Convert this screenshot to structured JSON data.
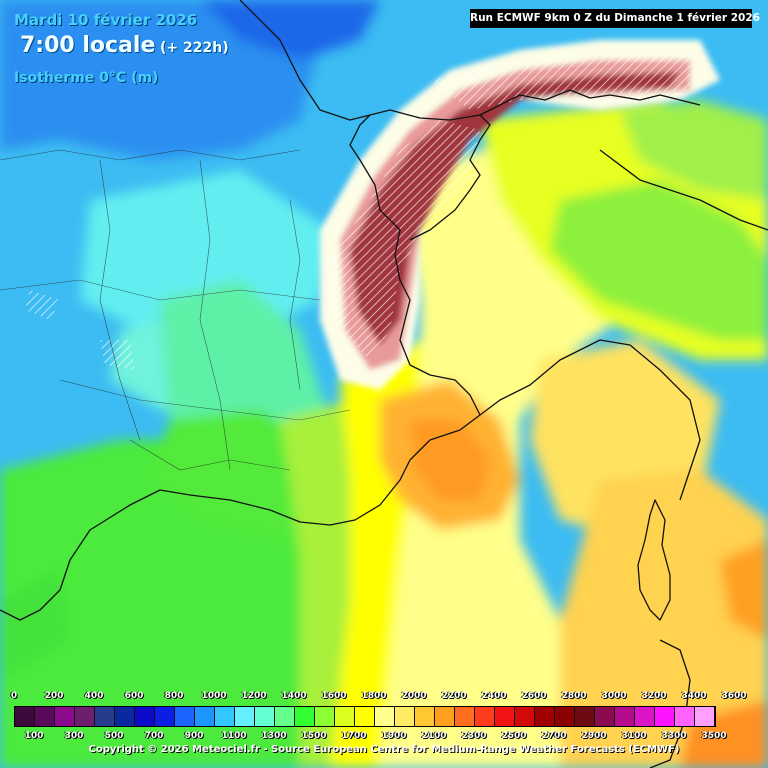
{
  "header": {
    "date": "Mardi 10 février 2026",
    "time": "7:00 locale",
    "lead": "(+ 222h)",
    "parameter": "Isotherme 0°C (m)",
    "run": "Run ECMWF 9km 0 Z du Dimanche 1 février 2026"
  },
  "legend": {
    "top_labels": [
      "0",
      "200",
      "400",
      "600",
      "800",
      "1000",
      "1200",
      "1400",
      "1600",
      "1800",
      "2000",
      "2200",
      "2400",
      "2600",
      "2800",
      "3000",
      "3200",
      "3400",
      "3600"
    ],
    "bottom_labels": [
      "100",
      "300",
      "500",
      "700",
      "900",
      "1100",
      "1300",
      "1500",
      "1700",
      "1900",
      "2100",
      "2300",
      "2500",
      "2700",
      "2900",
      "3100",
      "3300",
      "3500"
    ],
    "colors": [
      "#3c0a3c",
      "#5a0a5a",
      "#8c0a8c",
      "#6e1e6e",
      "#283c8c",
      "#0a28a0",
      "#0a0ac8",
      "#0a1ee6",
      "#1e64ff",
      "#1e96ff",
      "#32c8ff",
      "#64f0ff",
      "#64ffd2",
      "#64ff8c",
      "#32ff32",
      "#8cff32",
      "#dcff1e",
      "#ffff00",
      "#ffff8c",
      "#ffeb64",
      "#ffc832",
      "#ffa01e",
      "#ff6e1e",
      "#ff3c1e",
      "#f01414",
      "#d20a0a",
      "#a00000",
      "#8c0000",
      "#6e0a14",
      "#8c0a50",
      "#b40a8c",
      "#dc14c8",
      "#ff14ff",
      "#ff64ff",
      "#ffa0ff"
    ]
  },
  "footer": {
    "copyright": "Copyright © 2026 Meteociel.fr - Source European Centre for Medium-Range Weather Forecasts (ECMWF)"
  },
  "map": {
    "palette": {
      "sea_blue_dark": "#1e7df0",
      "blue": "#2aa6f2",
      "light_blue": "#4fd2f4",
      "cyan": "#62f0ee",
      "green": "#4cea3c",
      "light_green": "#a3f03a",
      "yellow": "#ffff00",
      "pale_yellow": "#ffff8c",
      "light_orange": "#ffd050",
      "orange": "#ffa825",
      "dark_orange": "#ff8a20",
      "alps_red": "#a0343c",
      "alps_dark": "#6a1a28"
    }
  }
}
